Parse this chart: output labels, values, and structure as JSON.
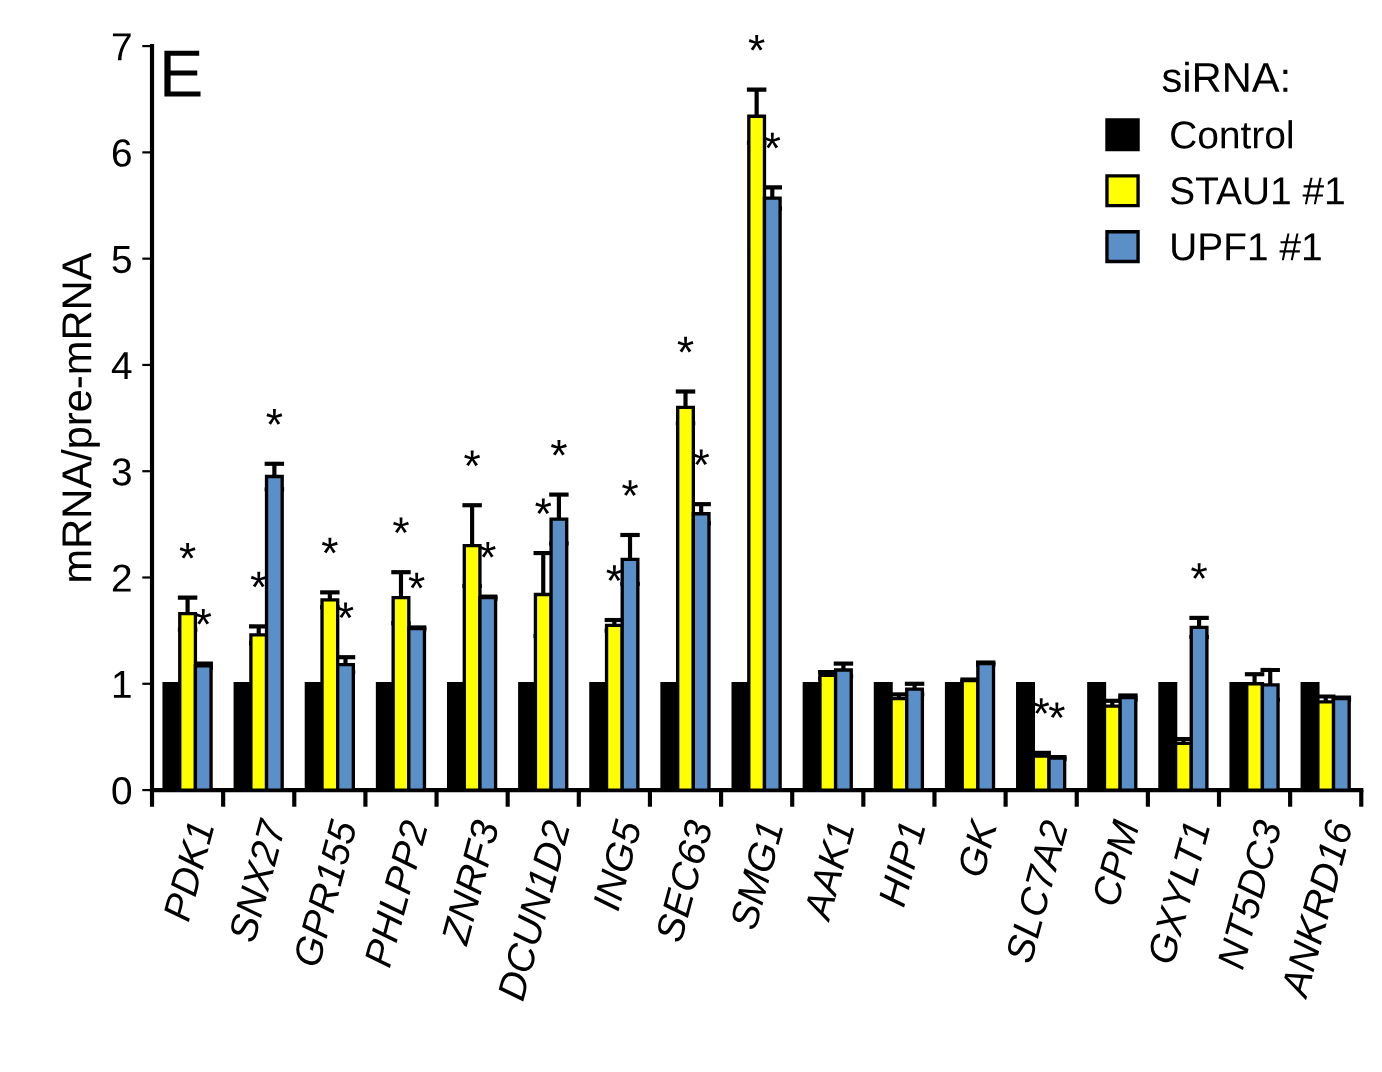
{
  "chart_data": {
    "type": "bar",
    "ylabel": "mRNA/pre-mRNA",
    "legend_title": "siRNA:",
    "annotations": [
      "E"
    ],
    "categories": [
      "PDK1",
      "SNX27",
      "GPR155",
      "PHLPP2",
      "ZNRF3",
      "DCUN1D2",
      "ING5",
      "SEC63",
      "SMG1",
      "AAK1",
      "HIP1",
      "GK",
      "SLC7A2",
      "CPM",
      "GXYLT1",
      "NT5DC3",
      "ANKRD16"
    ],
    "series": [
      {
        "name": "Control",
        "color": "#000000",
        "values": [
          1,
          1,
          1,
          1,
          1,
          1,
          1,
          1,
          1,
          1,
          1,
          1,
          1,
          1,
          1,
          1,
          1
        ]
      },
      {
        "name": "STAU1 #1",
        "color": "#ffff00",
        "values": [
          1.66,
          1.46,
          1.79,
          1.81,
          2.3,
          1.84,
          1.55,
          3.6,
          6.34,
          1.08,
          0.86,
          1.03,
          0.32,
          0.79,
          0.44,
          1.0,
          0.83
        ],
        "errors": [
          0.15,
          0.08,
          0.07,
          0.24,
          0.38,
          0.39,
          0.05,
          0.15,
          0.25,
          0.03,
          0.04,
          0.01,
          0.03,
          0.05,
          0.04,
          0.09,
          0.05
        ],
        "value_labels": [
          "*",
          "*",
          "*",
          "*",
          "*",
          "*",
          "*",
          "*",
          "*",
          null,
          null,
          null,
          "*",
          null,
          null,
          null,
          null
        ]
      },
      {
        "name": "UPF1 #1",
        "color": "#5b8fc7",
        "values": [
          1.17,
          2.95,
          1.18,
          1.52,
          1.81,
          2.55,
          2.17,
          2.6,
          5.57,
          1.13,
          0.95,
          1.19,
          0.3,
          0.87,
          1.53,
          0.99,
          0.86
        ],
        "errors": [
          0.02,
          0.12,
          0.07,
          0.01,
          0.01,
          0.23,
          0.23,
          0.09,
          0.1,
          0.06,
          0.05,
          0.01,
          0.01,
          0.02,
          0.09,
          0.14,
          0.01
        ],
        "value_labels": [
          "*",
          "*",
          "*",
          "*",
          "*",
          "*",
          "*",
          "*",
          "*",
          null,
          null,
          null,
          "*",
          null,
          "*",
          null,
          null
        ]
      }
    ],
    "ylim": [
      0,
      7
    ],
    "yticks": [
      0,
      1,
      2,
      3,
      4,
      5,
      6,
      7
    ],
    "grid": false,
    "legend": "top right"
  }
}
